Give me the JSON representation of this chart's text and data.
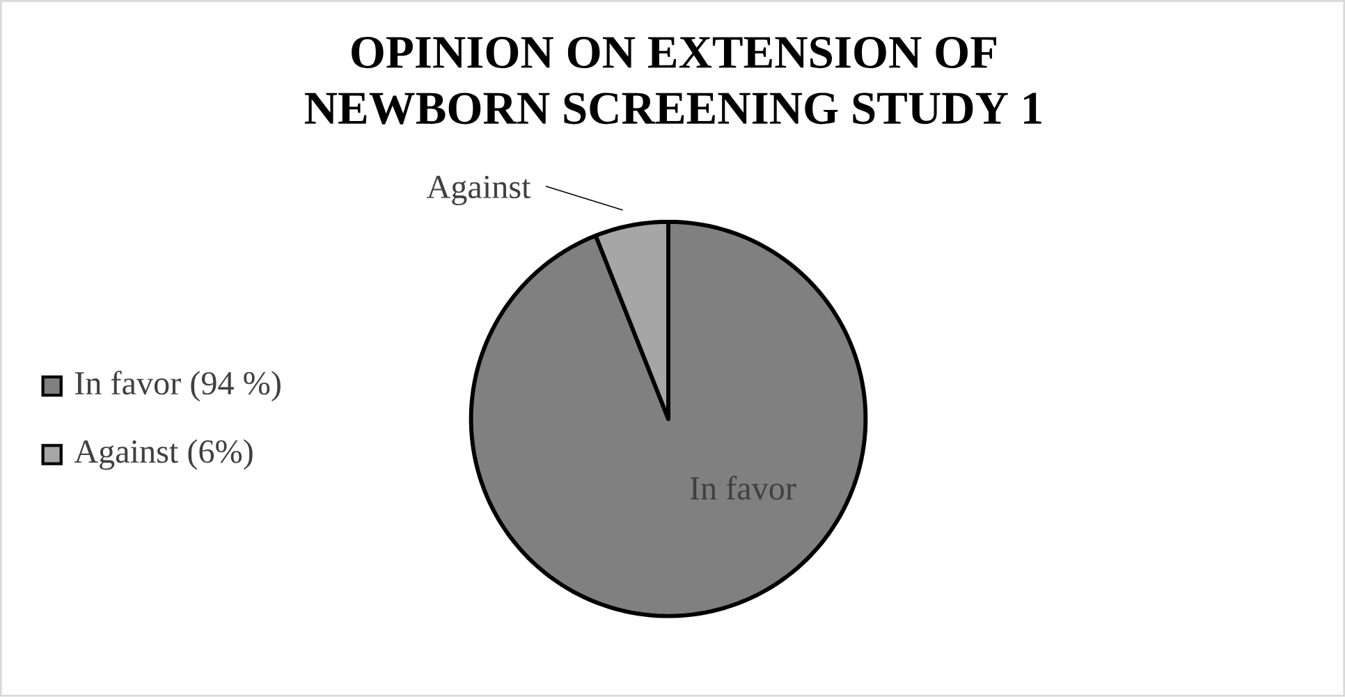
{
  "chart_data": {
    "type": "pie",
    "title": "OPINION ON EXTENSION OF NEWBORN SCREENING STUDY  1",
    "categories": [
      "In favor (94 %)",
      "Against (6%)"
    ],
    "values": [
      94,
      6
    ],
    "colors": [
      "#808080",
      "#a6a6a6"
    ],
    "annotations": [
      "In favor",
      "Against"
    ],
    "legend": "left"
  }
}
